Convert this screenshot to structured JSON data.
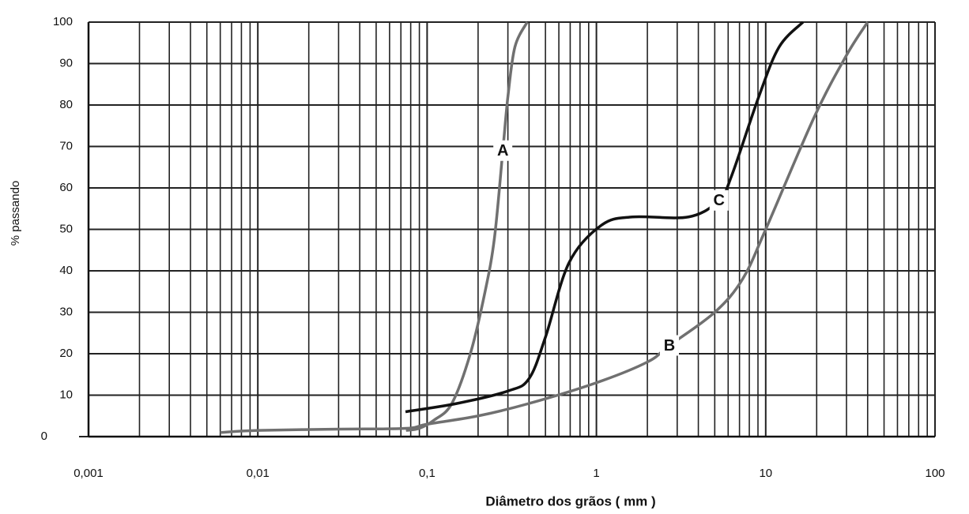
{
  "chart_data": {
    "type": "line",
    "xlabel": "Diâmetro dos grãos ( mm )",
    "ylabel": "% passando",
    "xscale": "log",
    "grid": true,
    "xlim": [
      0.001,
      100
    ],
    "xticks": [
      {
        "value": 0.001,
        "label": "0,001"
      },
      {
        "value": 0.01,
        "label": "0,01"
      },
      {
        "value": 0.1,
        "label": "0,1"
      },
      1,
      10,
      100
    ],
    "ylim": [
      0,
      100
    ],
    "yticks": [
      0,
      10,
      20,
      30,
      40,
      50,
      60,
      70,
      80,
      90,
      100
    ],
    "series": [
      {
        "name": "A",
        "color": "#707070",
        "x": [
          0.075,
          0.09,
          0.11,
          0.14,
          0.18,
          0.22,
          0.25,
          0.28,
          0.3,
          0.33,
          0.39
        ],
        "values": [
          1.5,
          2,
          4,
          8,
          20,
          35,
          48,
          69,
          82,
          94,
          100
        ]
      },
      {
        "name": "B",
        "color": "#707070",
        "x": [
          0.006,
          0.01,
          0.03,
          0.075,
          0.1,
          0.2,
          0.4,
          1,
          2,
          2.7,
          5,
          7.3,
          10,
          19.3,
          30,
          40
        ],
        "values": [
          1,
          1.5,
          1.8,
          2,
          3,
          5,
          8,
          13,
          18,
          22,
          30,
          38,
          50,
          77,
          92,
          100
        ]
      },
      {
        "name": "C",
        "color": "#111111",
        "x": [
          0.0745,
          0.15,
          0.3,
          0.4,
          0.5,
          0.69,
          1.07,
          1.63,
          3.5,
          5.3,
          6.3,
          9.1,
          12,
          16.6
        ],
        "values": [
          6,
          8,
          11,
          14,
          24,
          42,
          51,
          53,
          53,
          57,
          63,
          82,
          94,
          100
        ]
      }
    ]
  }
}
